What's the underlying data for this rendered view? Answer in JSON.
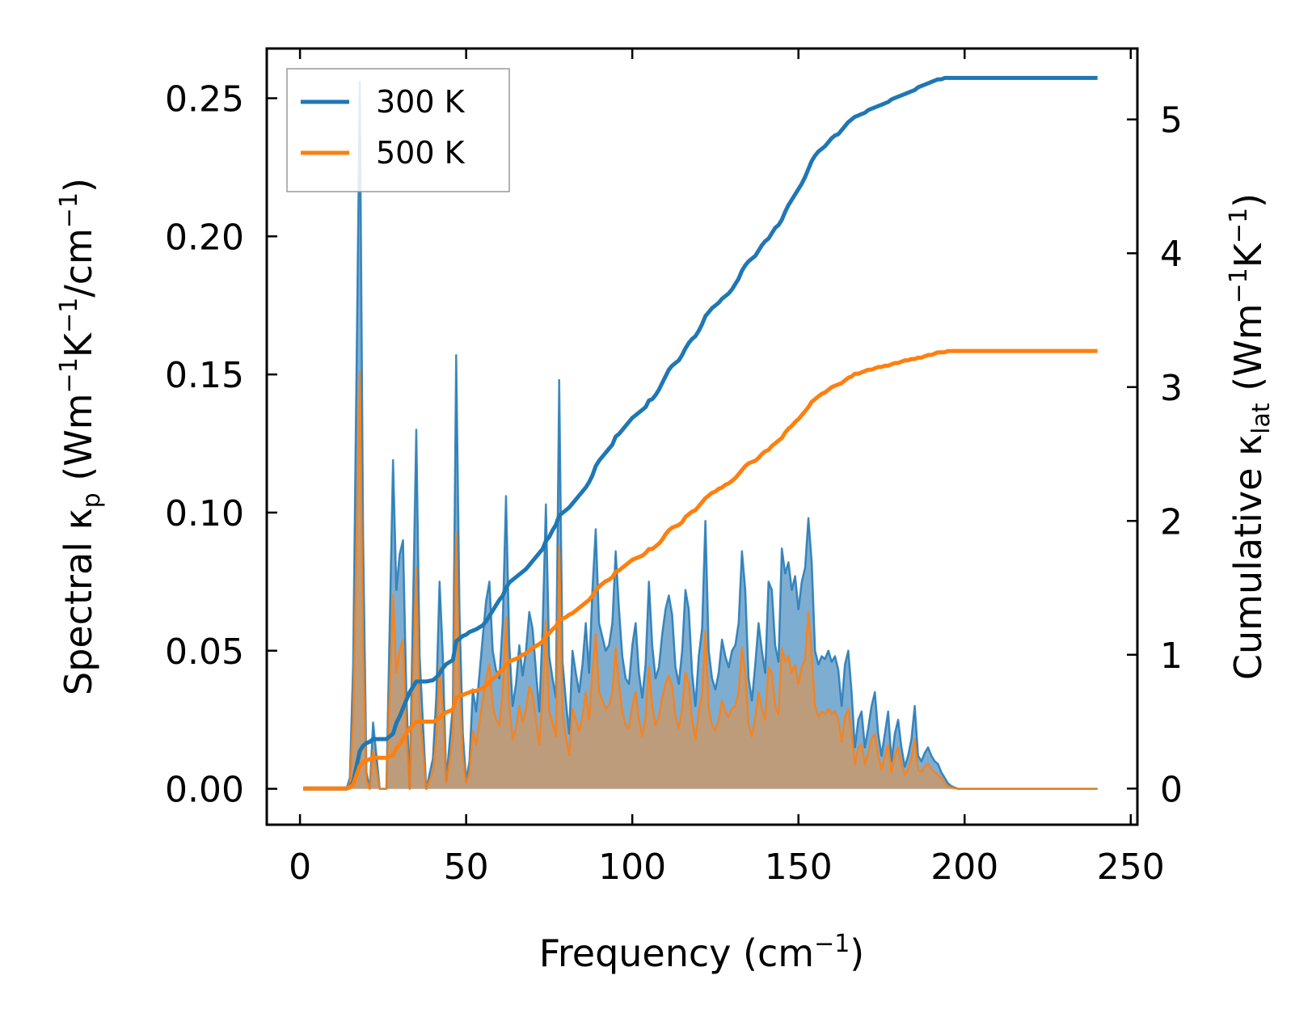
{
  "chart_data": {
    "type": "line",
    "title": "",
    "xlabel": "Frequency (cm",
    "xlabel_sup": "−1",
    "xlabel_end": ")",
    "ylabel_left": {
      "p1": "Spectral κ",
      "sub": "p",
      "p2": " (Wm",
      "sup1": "−1",
      "p3": "K",
      "sup2": "−1",
      "p4": "/cm",
      "sup3": "−1",
      "p5": ")"
    },
    "ylabel_right": {
      "p1": "Cumulative κ",
      "sub": "lat",
      "p2": " (Wm",
      "sup1": "−1",
      "p3": "K",
      "sup2": "−1",
      "p4": ")"
    },
    "xlim": [
      -10,
      252
    ],
    "ylim_left": [
      -0.013,
      0.268
    ],
    "ylim_right": [
      -0.27,
      5.53
    ],
    "xticks": [
      "0",
      "50",
      "100",
      "150",
      "200",
      "250"
    ],
    "yticks_left": [
      "0.00",
      "0.05",
      "0.10",
      "0.15",
      "0.20",
      "0.25"
    ],
    "yticks_right": [
      "0",
      "1",
      "2",
      "3",
      "4",
      "5"
    ],
    "legend_position": "top-left",
    "colors": {
      "300K": "#1f77b4",
      "500K": "#ff7f0e",
      "fill300": "#77a9d0",
      "fill500": "#c49a72"
    },
    "spectral_x": [
      1,
      14,
      15,
      16,
      18,
      19,
      20,
      21,
      22,
      24,
      25,
      26,
      28,
      29,
      30,
      31,
      32,
      33,
      35,
      36,
      38,
      40,
      41,
      42,
      43,
      44,
      46,
      47,
      48,
      49,
      50,
      51,
      52,
      53,
      55,
      56,
      57,
      58,
      59,
      60,
      61,
      62,
      63,
      64,
      65,
      66,
      67,
      68,
      69,
      70,
      72,
      73,
      74,
      75,
      76,
      77,
      78,
      79,
      80,
      81,
      82,
      83,
      84,
      85,
      86,
      87,
      88,
      89,
      90,
      91,
      92,
      93,
      94,
      95,
      96,
      97,
      98,
      99,
      100,
      101,
      102,
      103,
      104,
      105,
      106,
      107,
      108,
      109,
      110,
      111,
      112,
      113,
      114,
      115,
      116,
      117,
      118,
      119,
      120,
      121,
      122,
      123,
      124,
      125,
      126,
      127,
      128,
      129,
      130,
      131,
      132,
      133,
      134,
      135,
      136,
      137,
      138,
      139,
      140,
      141,
      142,
      143,
      144,
      145,
      146,
      147,
      148,
      149,
      150,
      151,
      152,
      153,
      154,
      155,
      156,
      157,
      158,
      159,
      160,
      161,
      162,
      163,
      164,
      165,
      166,
      167,
      168,
      169,
      170,
      171,
      172,
      173,
      174,
      175,
      176,
      177,
      178,
      179,
      180,
      181,
      182,
      183,
      184,
      185,
      186,
      187,
      188,
      189,
      190,
      191,
      192,
      193,
      194,
      195,
      196,
      197,
      198,
      199,
      200,
      240
    ],
    "series": [
      {
        "name": "300 K",
        "spectral": [
          0,
          0,
          0.004,
          0.045,
          0.256,
          0.09,
          0.006,
          0,
          0.024,
          0,
          0,
          0,
          0.119,
          0.072,
          0.085,
          0.09,
          0.035,
          0,
          0.13,
          0.048,
          0,
          0.011,
          0.033,
          0.075,
          0.048,
          0.003,
          0.03,
          0.157,
          0.064,
          0.02,
          0.003,
          0.01,
          0.036,
          0.028,
          0.055,
          0.068,
          0.075,
          0.05,
          0.043,
          0.04,
          0.06,
          0.106,
          0.052,
          0.03,
          0.038,
          0.052,
          0.041,
          0.05,
          0.064,
          0.058,
          0.028,
          0.058,
          0.103,
          0.048,
          0.04,
          0.033,
          0.148,
          0.046,
          0.032,
          0.02,
          0.05,
          0.042,
          0.035,
          0.045,
          0.06,
          0.042,
          0.072,
          0.094,
          0.06,
          0.055,
          0.05,
          0.052,
          0.06,
          0.086,
          0.065,
          0.048,
          0.04,
          0.038,
          0.052,
          0.06,
          0.042,
          0.033,
          0.045,
          0.075,
          0.052,
          0.04,
          0.044,
          0.056,
          0.065,
          0.07,
          0.063,
          0.044,
          0.038,
          0.05,
          0.072,
          0.065,
          0.042,
          0.03,
          0.048,
          0.058,
          0.097,
          0.05,
          0.04,
          0.036,
          0.042,
          0.054,
          0.048,
          0.044,
          0.05,
          0.052,
          0.06,
          0.086,
          0.072,
          0.04,
          0.032,
          0.045,
          0.06,
          0.05,
          0.042,
          0.075,
          0.072,
          0.052,
          0.046,
          0.087,
          0.078,
          0.082,
          0.072,
          0.077,
          0.065,
          0.075,
          0.08,
          0.098,
          0.082,
          0.05,
          0.045,
          0.048,
          0.047,
          0.05,
          0.046,
          0.048,
          0.043,
          0.03,
          0.045,
          0.05,
          0.035,
          0.015,
          0.025,
          0.028,
          0.015,
          0.022,
          0.03,
          0.035,
          0.02,
          0.012,
          0.02,
          0.028,
          0.01,
          0.02,
          0.025,
          0.015,
          0.008,
          0.012,
          0.018,
          0.03,
          0.012,
          0.01,
          0.013,
          0.015,
          0.012,
          0.01,
          0.009,
          0.006,
          0.004,
          0.002,
          0.001,
          0.0005,
          0,
          0,
          0,
          0
        ],
        "cumulative": [
          0,
          0,
          0.01,
          0.05,
          0.28,
          0.32,
          0.34,
          0.35,
          0.37,
          0.37,
          0.37,
          0.37,
          0.41,
          0.49,
          0.54,
          0.6,
          0.66,
          0.72,
          0.8,
          0.8,
          0.8,
          0.81,
          0.83,
          0.86,
          0.9,
          0.93,
          0.96,
          1.1,
          1.12,
          1.14,
          1.15,
          1.17,
          1.18,
          1.19,
          1.22,
          1.25,
          1.29,
          1.33,
          1.37,
          1.41,
          1.44,
          1.5,
          1.54,
          1.56,
          1.58,
          1.6,
          1.62,
          1.64,
          1.67,
          1.7,
          1.76,
          1.79,
          1.85,
          1.88,
          1.93,
          1.97,
          2.04,
          2.06,
          2.08,
          2.1,
          2.13,
          2.16,
          2.19,
          2.22,
          2.25,
          2.29,
          2.34,
          2.41,
          2.45,
          2.48,
          2.51,
          2.54,
          2.57,
          2.63,
          2.65,
          2.68,
          2.71,
          2.74,
          2.77,
          2.79,
          2.81,
          2.83,
          2.85,
          2.9,
          2.91,
          2.94,
          2.98,
          3.03,
          3.08,
          3.13,
          3.16,
          3.18,
          3.2,
          3.24,
          3.29,
          3.33,
          3.36,
          3.38,
          3.42,
          3.47,
          3.53,
          3.56,
          3.59,
          3.61,
          3.63,
          3.66,
          3.68,
          3.7,
          3.73,
          3.77,
          3.81,
          3.87,
          3.91,
          3.94,
          3.96,
          3.98,
          4.02,
          4.06,
          4.09,
          4.11,
          4.15,
          4.19,
          4.21,
          4.25,
          4.31,
          4.36,
          4.4,
          4.44,
          4.48,
          4.52,
          4.57,
          4.63,
          4.69,
          4.73,
          4.76,
          4.78,
          4.8,
          4.83,
          4.86,
          4.88,
          4.89,
          4.92,
          4.95,
          4.98,
          5.0,
          5.02,
          5.03,
          5.04,
          5.05,
          5.07,
          5.08,
          5.09,
          5.1,
          5.11,
          5.12,
          5.13,
          5.15,
          5.16,
          5.17,
          5.18,
          5.19,
          5.2,
          5.21,
          5.22,
          5.24,
          5.25,
          5.26,
          5.27,
          5.28,
          5.29,
          5.3,
          5.3,
          5.31,
          5.31,
          5.31,
          5.31,
          5.31,
          5.31,
          5.31,
          5.31
        ]
      },
      {
        "name": "500 K",
        "spectral": [
          0,
          0,
          0.002,
          0.025,
          0.151,
          0.05,
          0.003,
          0,
          0.014,
          0,
          0,
          0,
          0.07,
          0.042,
          0.05,
          0.054,
          0.02,
          0,
          0.08,
          0.028,
          0,
          0.006,
          0.019,
          0.044,
          0.028,
          0.002,
          0.018,
          0.093,
          0.037,
          0.012,
          0.002,
          0.006,
          0.021,
          0.016,
          0.032,
          0.04,
          0.045,
          0.03,
          0.025,
          0.023,
          0.035,
          0.062,
          0.03,
          0.018,
          0.022,
          0.03,
          0.024,
          0.029,
          0.037,
          0.034,
          0.016,
          0.034,
          0.061,
          0.028,
          0.024,
          0.019,
          0.088,
          0.027,
          0.019,
          0.012,
          0.029,
          0.025,
          0.021,
          0.026,
          0.035,
          0.025,
          0.042,
          0.056,
          0.035,
          0.032,
          0.029,
          0.03,
          0.035,
          0.051,
          0.038,
          0.028,
          0.023,
          0.022,
          0.03,
          0.035,
          0.025,
          0.019,
          0.026,
          0.044,
          0.03,
          0.023,
          0.026,
          0.033,
          0.038,
          0.041,
          0.037,
          0.026,
          0.022,
          0.029,
          0.042,
          0.038,
          0.025,
          0.018,
          0.028,
          0.034,
          0.057,
          0.029,
          0.023,
          0.021,
          0.025,
          0.032,
          0.028,
          0.026,
          0.029,
          0.03,
          0.035,
          0.051,
          0.042,
          0.023,
          0.019,
          0.026,
          0.035,
          0.029,
          0.025,
          0.044,
          0.042,
          0.03,
          0.027,
          0.051,
          0.046,
          0.048,
          0.042,
          0.045,
          0.038,
          0.044,
          0.047,
          0.064,
          0.048,
          0.03,
          0.026,
          0.028,
          0.027,
          0.029,
          0.027,
          0.028,
          0.025,
          0.017,
          0.026,
          0.029,
          0.02,
          0.009,
          0.015,
          0.016,
          0.009,
          0.013,
          0.018,
          0.02,
          0.012,
          0.007,
          0.012,
          0.016,
          0.006,
          0.012,
          0.015,
          0.009,
          0.005,
          0.007,
          0.011,
          0.018,
          0.007,
          0.006,
          0.008,
          0.009,
          0.007,
          0.006,
          0.005,
          0.004,
          0.002,
          0.001,
          0.0005,
          0.0002,
          0,
          0,
          0,
          0
        ],
        "cumulative": [
          0,
          0,
          0.01,
          0.03,
          0.17,
          0.2,
          0.21,
          0.22,
          0.23,
          0.23,
          0.23,
          0.23,
          0.25,
          0.3,
          0.33,
          0.37,
          0.41,
          0.45,
          0.5,
          0.5,
          0.5,
          0.5,
          0.51,
          0.53,
          0.55,
          0.57,
          0.59,
          0.68,
          0.69,
          0.7,
          0.71,
          0.72,
          0.73,
          0.73,
          0.75,
          0.77,
          0.8,
          0.82,
          0.84,
          0.87,
          0.89,
          0.92,
          0.95,
          0.96,
          0.97,
          0.98,
          1.0,
          1.01,
          1.03,
          1.05,
          1.08,
          1.1,
          1.14,
          1.16,
          1.19,
          1.21,
          1.26,
          1.27,
          1.28,
          1.3,
          1.31,
          1.33,
          1.35,
          1.37,
          1.39,
          1.41,
          1.44,
          1.48,
          1.51,
          1.53,
          1.55,
          1.56,
          1.58,
          1.62,
          1.63,
          1.65,
          1.67,
          1.69,
          1.71,
          1.72,
          1.73,
          1.74,
          1.76,
          1.79,
          1.79,
          1.81,
          1.83,
          1.86,
          1.9,
          1.93,
          1.95,
          1.96,
          1.97,
          1.99,
          2.03,
          2.05,
          2.07,
          2.08,
          2.11,
          2.14,
          2.17,
          2.19,
          2.21,
          2.22,
          2.24,
          2.25,
          2.27,
          2.28,
          2.3,
          2.32,
          2.35,
          2.38,
          2.41,
          2.43,
          2.44,
          2.45,
          2.47,
          2.5,
          2.52,
          2.53,
          2.56,
          2.58,
          2.6,
          2.62,
          2.66,
          2.69,
          2.71,
          2.74,
          2.76,
          2.79,
          2.82,
          2.85,
          2.89,
          2.91,
          2.93,
          2.95,
          2.96,
          2.98,
          3.0,
          3.01,
          3.02,
          3.03,
          3.05,
          3.07,
          3.08,
          3.1,
          3.1,
          3.11,
          3.12,
          3.13,
          3.13,
          3.14,
          3.15,
          3.15,
          3.16,
          3.16,
          3.17,
          3.18,
          3.18,
          3.19,
          3.2,
          3.2,
          3.21,
          3.21,
          3.22,
          3.22,
          3.23,
          3.24,
          3.24,
          3.25,
          3.26,
          3.26,
          3.26,
          3.27,
          3.27,
          3.27,
          3.27,
          3.27,
          3.27,
          3.27
        ]
      }
    ]
  }
}
